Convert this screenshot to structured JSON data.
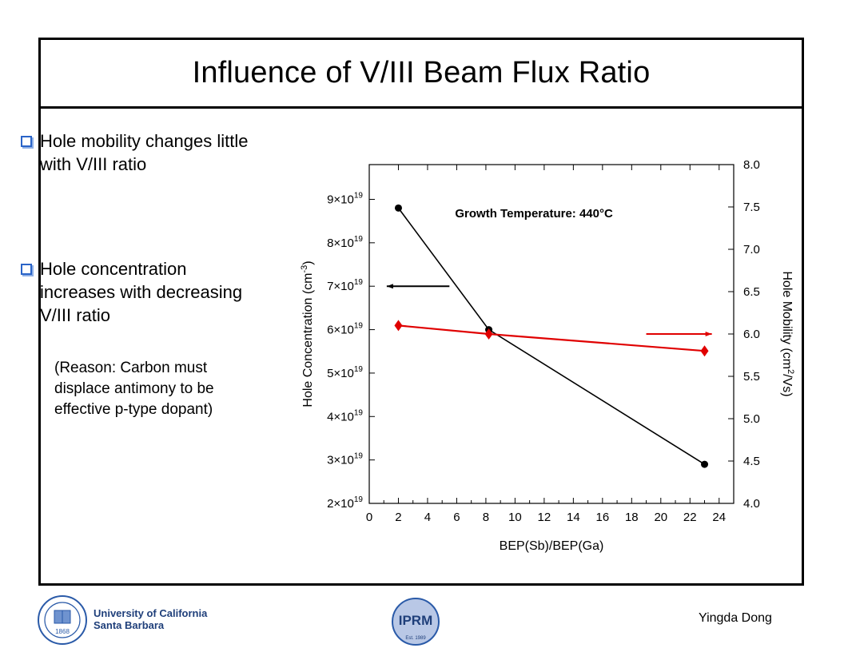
{
  "slide": {
    "title": "Influence of V/III Beam Flux Ratio",
    "bullets": [
      "Hole mobility changes little with V/III ratio",
      "Hole concentration increases with decreasing V/III ratio"
    ],
    "note": "(Reason: Carbon must displace antimony to be effective p-type dopant)"
  },
  "footer": {
    "university_line1": "University of California",
    "university_line2": "Santa Barbara",
    "author": "Yingda Dong",
    "center_logo_text": "IPRM",
    "center_logo_est": "Est. 1989",
    "left_logo_text": "1868"
  },
  "colors": {
    "concentration_series": "#000000",
    "mobility_series": "#e00000",
    "bullet_box": "#2a64c8",
    "university_text": "#1f3f7a"
  },
  "chart_data": {
    "type": "line",
    "annotation": "Growth Temperature: 440°C",
    "xlabel": "BEP(Sb)/BEP(Ga)",
    "ylabel_left": "Hole Concentration (cm^-3)",
    "ylabel_right": "Hole Mobility (cm^2/Vs)",
    "xlim": [
      0,
      25
    ],
    "x_ticks": [
      0,
      2,
      4,
      6,
      8,
      10,
      12,
      14,
      16,
      18,
      20,
      22,
      24
    ],
    "ylim_left": [
      2e+19,
      9.8e+19
    ],
    "left_ticks": [
      {
        "mant": "2",
        "exp": "19",
        "value": 2e+19
      },
      {
        "mant": "3",
        "exp": "19",
        "value": 3e+19
      },
      {
        "mant": "4",
        "exp": "19",
        "value": 4e+19
      },
      {
        "mant": "5",
        "exp": "19",
        "value": 5e+19
      },
      {
        "mant": "6",
        "exp": "19",
        "value": 6e+19
      },
      {
        "mant": "7",
        "exp": "19",
        "value": 7e+19
      },
      {
        "mant": "8",
        "exp": "19",
        "value": 8e+19
      },
      {
        "mant": "9",
        "exp": "19",
        "value": 9e+19
      }
    ],
    "ylim_right": [
      4.0,
      8.0
    ],
    "right_ticks": [
      "4.0",
      "4.5",
      "5.0",
      "5.5",
      "6.0",
      "6.5",
      "7.0",
      "7.5",
      "8.0"
    ],
    "series": [
      {
        "axis": "left",
        "marker": "circle",
        "x": [
          2,
          8.2,
          23
        ],
        "y": [
          8.8e+19,
          6e+19,
          2.9e+19
        ]
      },
      {
        "axis": "right",
        "marker": "diamond",
        "x": [
          2,
          8.2,
          23
        ],
        "y": [
          6.1,
          6.0,
          5.8
        ]
      }
    ],
    "arrows": [
      {
        "target": "left",
        "y": 7e+19,
        "x_from": 5.5,
        "x_to": 1.2
      },
      {
        "target": "right",
        "y": 6.0,
        "x_from": 19,
        "x_to": 23.5
      }
    ]
  }
}
